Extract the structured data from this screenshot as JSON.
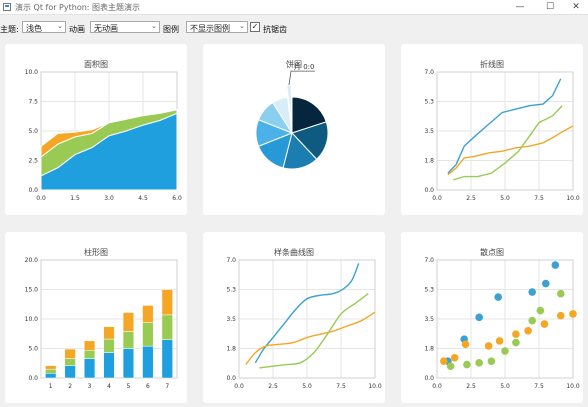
{
  "window": {
    "title": "演示 Qt for Python: 图表主题演示",
    "minimize_glyph": "—",
    "maximize_glyph": "☐",
    "close_glyph": "✕"
  },
  "toolbar": {
    "theme_label": "主题:",
    "theme_value": "浅色",
    "animation_label": "动画",
    "animation_value": "无动画",
    "legend_label": "图例",
    "legend_value": "不显示图例",
    "antialias_label": "抗锯齿",
    "antialias_checked": true,
    "check_glyph": "✓",
    "chevron_glyph": "⌄"
  },
  "colors": {
    "teal": "#209fdf",
    "green": "#99ca53",
    "orange": "#f6a625",
    "blue_line": "#3aa1d1",
    "pie_dark": "#05263c",
    "pie_1": "#0f5a80",
    "pie_2": "#1b7db0",
    "pie_3": "#2699d6",
    "pie_4": "#4cb1e7",
    "pie_5": "#8bcfef",
    "pie_6": "#d7eef9"
  },
  "charts": {
    "area": {
      "title": "面积图",
      "chart_data": {
        "type": "area",
        "x": [
          0,
          0.75,
          1.5,
          2.25,
          3,
          3.75,
          4.5,
          5.25,
          6
        ],
        "series": [
          {
            "values": [
              1.2,
              1.9,
              3.0,
              3.6,
              4.6,
              5.0,
              5.5,
              5.9,
              6.5
            ]
          },
          {
            "values": [
              1.6,
              2.0,
              1.5,
              1.2,
              1.1,
              1.0,
              0.8,
              0.6,
              0.3
            ]
          },
          {
            "values": [
              0.9,
              0.9,
              0.4,
              0.3,
              0.0,
              0.0,
              0.0,
              0.0,
              0.0
            ]
          }
        ],
        "xlim": [
          0,
          6
        ],
        "ylim": [
          0,
          10
        ],
        "xticks": [
          "0.0",
          "1.5",
          "3.0",
          "4.5",
          "6.0"
        ],
        "yticks": [
          "10.0",
          "7.5",
          "5.0",
          "2.5",
          "0.0"
        ]
      }
    },
    "pie": {
      "title": "饼图",
      "slice_label": "片 0:0",
      "chart_data": {
        "type": "pie",
        "values": [
          20,
          18,
          16,
          15,
          12,
          10,
          7,
          2
        ]
      }
    },
    "line": {
      "title": "折线图",
      "chart_data": {
        "type": "line",
        "xlim": [
          0,
          10
        ],
        "ylim": [
          0,
          7
        ],
        "xticks": [
          "0.0",
          "2.5",
          "5.0",
          "7.5",
          "10.0"
        ],
        "yticks": [
          "7.0",
          "5.3",
          "3.5",
          "1.8",
          "0.0"
        ],
        "series": [
          {
            "x": [
              0.8,
              1.4,
              2.0,
              2.8,
              3.8,
              4.8,
              5.8,
              6.8,
              7.8,
              8.5,
              9.1
            ],
            "y": [
              1.0,
              1.5,
              2.6,
              3.2,
              3.9,
              4.6,
              4.8,
              5.0,
              5.1,
              5.6,
              6.6
            ]
          },
          {
            "x": [
              0.8,
              1.4,
              2.0,
              2.8,
              3.8,
              4.8,
              5.8,
              6.8,
              7.8,
              8.5,
              9.1,
              10.0
            ],
            "y": [
              0.9,
              1.3,
              1.9,
              2.0,
              2.2,
              2.3,
              2.5,
              2.6,
              2.8,
              3.1,
              3.4,
              3.8
            ]
          },
          {
            "x": [
              1.2,
              2.0,
              3.0,
              4.0,
              5.0,
              6.0,
              6.8,
              7.5,
              8.5,
              9.2
            ],
            "y": [
              0.6,
              0.8,
              0.8,
              1.0,
              1.6,
              2.3,
              3.2,
              4.0,
              4.4,
              5.0
            ]
          }
        ]
      }
    },
    "bar": {
      "title": "柱形图",
      "chart_data": {
        "type": "bar",
        "categories": [
          "1",
          "2",
          "3",
          "4",
          "5",
          "6",
          "7"
        ],
        "ylim": [
          0,
          20
        ],
        "yticks": [
          "20.0",
          "15.0",
          "10.0",
          "5.0",
          "0.0"
        ],
        "series": [
          {
            "values": [
              0.8,
              2.1,
              3.3,
              4.3,
              5.0,
              5.4,
              6.5
            ]
          },
          {
            "values": [
              0.7,
              1.2,
              1.4,
              2.3,
              2.9,
              4.0,
              4.2
            ]
          },
          {
            "values": [
              0.6,
              1.6,
              1.6,
              2.1,
              3.2,
              2.9,
              4.3
            ]
          }
        ]
      }
    },
    "spline": {
      "title": "样条曲线图",
      "chart_data": {
        "type": "line",
        "xlim": [
          0,
          10
        ],
        "ylim": [
          0,
          7
        ],
        "xticks": [
          "0.0",
          "2.5",
          "5.0",
          "7.5",
          "10.0"
        ],
        "yticks": [
          "7.0",
          "5.3",
          "3.5",
          "1.8",
          "0.0"
        ],
        "series": [
          {
            "x": [
              1.2,
              1.8,
              2.5,
              3.3,
              4.2,
              5.0,
              5.9,
              6.9,
              7.7,
              8.3,
              8.8
            ],
            "y": [
              0.9,
              1.7,
              2.4,
              3.2,
              4.1,
              4.7,
              4.9,
              5.0,
              5.3,
              5.8,
              6.8
            ]
          },
          {
            "x": [
              0.5,
              1.2,
              2.0,
              3.0,
              4.0,
              5.0,
              6.0,
              7.0,
              8.0,
              9.0,
              10.0
            ],
            "y": [
              0.8,
              1.5,
              1.9,
              2.0,
              2.1,
              2.4,
              2.6,
              2.8,
              3.1,
              3.4,
              3.9
            ]
          },
          {
            "x": [
              1.5,
              2.5,
              3.5,
              4.5,
              5.5,
              6.5,
              7.5,
              8.5,
              9.5
            ],
            "y": [
              0.6,
              0.7,
              0.8,
              0.9,
              1.5,
              2.6,
              3.8,
              4.4,
              5.0
            ]
          }
        ]
      }
    },
    "scatter": {
      "title": "散点图",
      "chart_data": {
        "type": "scatter",
        "xlim": [
          0,
          10
        ],
        "ylim": [
          0,
          7
        ],
        "xticks": [
          "0.0",
          "2.5",
          "5.0",
          "7.5",
          "10.0"
        ],
        "yticks": [
          "7.0",
          "5.3",
          "3.5",
          "1.8",
          "0.0"
        ],
        "series": [
          {
            "x": [
              0.8,
              2.0,
              3.1,
              4.5,
              7.0,
              8.0,
              8.7
            ],
            "y": [
              1.0,
              2.3,
              3.6,
              4.8,
              5.1,
              5.6,
              6.7
            ]
          },
          {
            "x": [
              0.5,
              1.3,
              2.1,
              3.8,
              4.6,
              5.8,
              6.7,
              7.9,
              9.1,
              10.0
            ],
            "y": [
              1.0,
              1.2,
              2.0,
              1.9,
              2.2,
              2.6,
              2.8,
              3.2,
              3.7,
              3.8
            ]
          },
          {
            "x": [
              1.0,
              2.2,
              3.1,
              4.0,
              5.0,
              5.8,
              7.0,
              7.6,
              9.1
            ],
            "y": [
              0.7,
              0.8,
              0.9,
              1.0,
              1.6,
              2.1,
              3.4,
              4.0,
              5.0
            ]
          }
        ]
      }
    }
  }
}
